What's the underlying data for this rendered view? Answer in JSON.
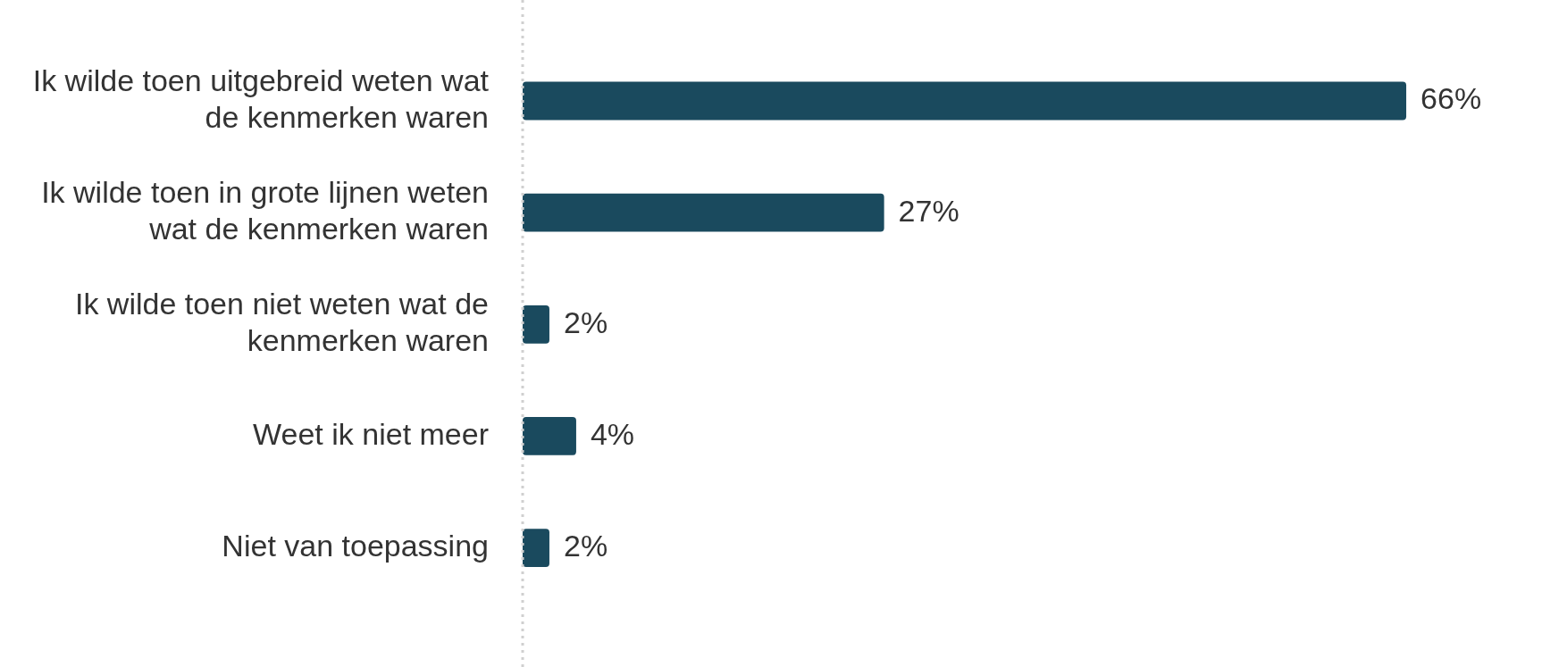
{
  "chart_data": {
    "type": "bar",
    "orientation": "horizontal",
    "categories": [
      "Ik wilde toen uitgebreid weten wat de kenmerken waren",
      "Ik wilde toen in grote lijnen weten wat de kenmerken waren",
      "Ik wilde toen niet weten wat de kenmerken waren",
      "Weet ik niet meer",
      "Niet van toepassing"
    ],
    "values": [
      66,
      27,
      2,
      4,
      2
    ],
    "value_labels": [
      "66%",
      "27%",
      "2%",
      "4%",
      "2%"
    ],
    "color": "#1a4a5e",
    "legend": false
  }
}
